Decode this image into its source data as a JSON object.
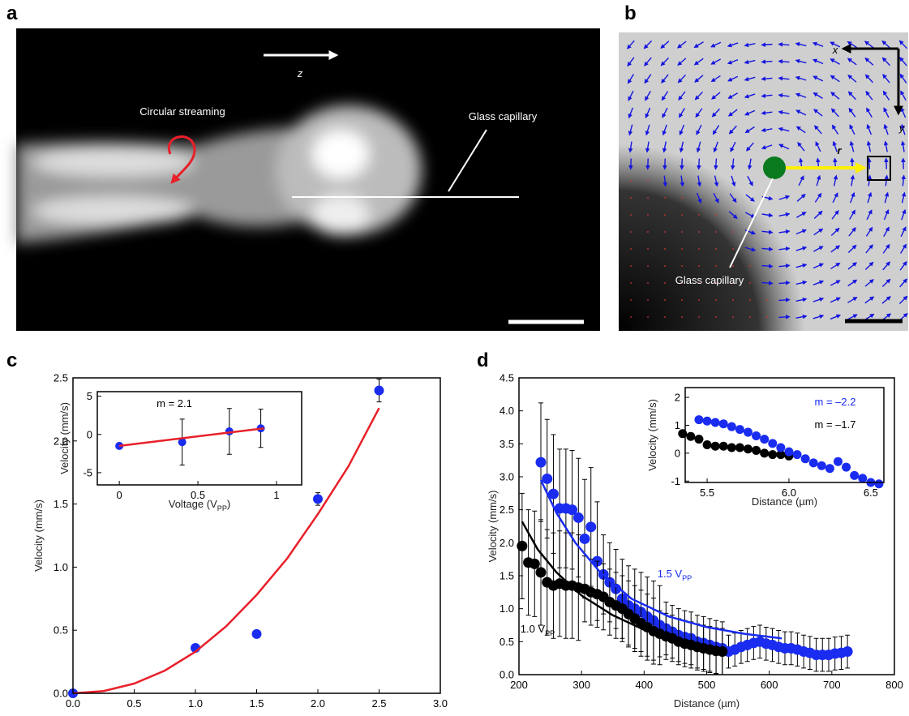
{
  "panel_a": {
    "label": "a",
    "texts": [
      "z",
      "Circular streaming",
      "Glass capillary"
    ]
  },
  "panel_b": {
    "label": "b",
    "texts": [
      "x",
      "y",
      "r",
      "Glass capillary"
    ]
  },
  "chart_data": [
    {
      "label": "c",
      "type": "scatter",
      "x_label": [
        "Voltage (V",
        "PP",
        ")"
      ],
      "y_label": "Velocity (mm/s)",
      "xlim": [
        0,
        3
      ],
      "ylim": [
        0,
        2.5
      ],
      "xticks": [
        {
          "value": 0,
          "label": "0.0"
        },
        0.5,
        {
          "value": 1,
          "label": "1.0"
        },
        1.5,
        {
          "value": 2,
          "label": "2.0"
        },
        2.5,
        {
          "value": 3,
          "label": "3.0"
        }
      ],
      "yticks": [
        {
          "value": 0,
          "label": "0.0"
        },
        0.5,
        {
          "value": 1,
          "label": "1.0"
        },
        1.5,
        {
          "value": 2,
          "label": "2.0"
        },
        2.5
      ],
      "series": [
        {
          "type": "scatter",
          "color": "#1a2cf0",
          "x": [
            0,
            1,
            1.5,
            2,
            2.5
          ],
          "values": [
            0,
            0.36,
            0.47,
            1.54,
            2.4
          ],
          "errors": [
            0.01,
            0.02,
            0.03,
            0.05,
            0.09
          ]
        },
        {
          "type": "line",
          "color": "#e8202a",
          "x": [
            0,
            0.25,
            0.5,
            0.75,
            1,
            1.25,
            1.5,
            1.75,
            2,
            2.25,
            2.5
          ],
          "values": [
            0,
            0.018,
            0.077,
            0.18,
            0.33,
            0.53,
            0.78,
            1.07,
            1.42,
            1.8,
            2.26
          ]
        }
      ]
    },
    {
      "type": "scatter",
      "x_label": [
        "Voltage (V",
        "PP",
        ")"
      ],
      "y_label": "Velocity (mm/s)",
      "xlim": [
        -0.14,
        1.16
      ],
      "ylim": [
        -6.6,
        5.6
      ],
      "xticks": [
        0,
        0.5,
        1
      ],
      "yticks": [
        -5,
        0,
        5
      ],
      "annotations": [
        {
          "text": "m = 2.1",
          "color": "#000000"
        }
      ],
      "series": [
        {
          "type": "scatter",
          "color": "#1a2cf0",
          "x": [
            0,
            0.4,
            0.7,
            0.9
          ],
          "values": [
            -1.5,
            -1.0,
            0.4,
            0.8
          ],
          "errors": [
            0.2,
            3,
            3,
            2.5
          ]
        },
        {
          "type": "line",
          "color": "#e8202a",
          "x": [
            0,
            0.92
          ],
          "values": [
            -1.5,
            0.8
          ]
        }
      ]
    },
    {
      "label": "d",
      "type": "scatter",
      "x_label": [
        "Distance (µm)"
      ],
      "y_label": "Velocity (mm/s)",
      "xlim": [
        200,
        800
      ],
      "ylim": [
        0,
        4.5
      ],
      "xticks": [
        200,
        300,
        400,
        500,
        600,
        700,
        800
      ],
      "yticks": [
        {
          "value": 0,
          "label": "0.0"
        },
        0.5,
        {
          "value": 1,
          "label": "1.0"
        },
        1.5,
        {
          "value": 2,
          "label": "2.0"
        },
        2.5,
        {
          "value": 3,
          "label": "3.0"
        },
        3.5,
        {
          "value": 4,
          "label": "4.0"
        },
        4.5
      ],
      "annotations": [
        {
          "text": [
            "1.5 V",
            "PP"
          ],
          "color": "#1a2cf0"
        },
        {
          "text": [
            "1.0 V",
            "PP"
          ],
          "color": "#000000"
        }
      ],
      "series": [
        {
          "type": "scatter",
          "color": "#1a2cf0",
          "x": [
            235,
            245,
            255,
            265,
            275,
            285,
            295,
            305,
            315,
            325,
            335,
            345,
            355,
            365,
            375,
            385,
            395,
            405,
            415,
            425,
            435,
            445,
            455,
            465,
            475,
            485,
            495,
            505,
            515,
            525,
            535,
            545,
            555,
            565,
            575,
            585,
            595,
            605,
            615,
            625,
            635,
            645,
            655,
            665,
            675,
            685,
            695,
            705,
            715,
            725
          ],
          "values": [
            3.22,
            2.97,
            2.74,
            2.52,
            2.52,
            2.5,
            2.38,
            2.06,
            2.24,
            1.72,
            1.52,
            1.4,
            1.3,
            1.15,
            1.05,
            1.0,
            0.95,
            0.88,
            0.82,
            0.75,
            0.7,
            0.65,
            0.6,
            0.57,
            0.55,
            0.5,
            0.48,
            0.45,
            0.42,
            0.4,
            0.35,
            0.38,
            0.42,
            0.45,
            0.48,
            0.5,
            0.47,
            0.45,
            0.42,
            0.4,
            0.4,
            0.38,
            0.35,
            0.33,
            0.3,
            0.3,
            0.3,
            0.32,
            0.33,
            0.35
          ],
          "errors": [
            0.9,
            0.9,
            0.9,
            0.9,
            0.9,
            0.9,
            0.9,
            0.9,
            0.9,
            0.9,
            0.6,
            0.6,
            0.6,
            0.6,
            0.6,
            0.6,
            0.6,
            0.6,
            0.6,
            0.6,
            0.4,
            0.4,
            0.4,
            0.4,
            0.4,
            0.4,
            0.4,
            0.4,
            0.4,
            0.4,
            0.25,
            0.25,
            0.25,
            0.25,
            0.25,
            0.25,
            0.25,
            0.25,
            0.25,
            0.25,
            0.25,
            0.25,
            0.25,
            0.25,
            0.25,
            0.25,
            0.25,
            0.25,
            0.25,
            0.25
          ]
        },
        {
          "type": "scatter",
          "color": "#000000",
          "x": [
            205,
            215,
            225,
            235,
            245,
            255,
            265,
            275,
            285,
            295,
            305,
            315,
            325,
            335,
            345,
            355,
            365,
            375,
            385,
            395,
            405,
            415,
            425,
            435,
            445,
            455,
            465,
            475,
            485,
            495,
            505,
            515,
            525
          ],
          "values": [
            1.95,
            1.7,
            1.68,
            1.55,
            1.4,
            1.35,
            1.38,
            1.35,
            1.35,
            1.32,
            1.3,
            1.25,
            1.22,
            1.18,
            1.1,
            1.05,
            1.0,
            0.92,
            0.85,
            0.78,
            0.72,
            0.66,
            0.62,
            0.58,
            0.55,
            0.5,
            0.47,
            0.45,
            0.42,
            0.4,
            0.38,
            0.36,
            0.35
          ],
          "errors": [
            0.8,
            0.8,
            0.8,
            0.8,
            0.8,
            0.8,
            0.8,
            0.8,
            0.8,
            0.8,
            0.5,
            0.5,
            0.5,
            0.5,
            0.5,
            0.5,
            0.5,
            0.5,
            0.5,
            0.5,
            0.5,
            0.5,
            0.35,
            0.35,
            0.35,
            0.35,
            0.35,
            0.35,
            0.35,
            0.35,
            0.35,
            0.35,
            0.35
          ]
        },
        {
          "type": "line",
          "color": "#1a2cf0",
          "x": [
            235,
            260,
            290,
            330,
            380,
            440,
            500,
            560,
            620
          ],
          "values": [
            2.95,
            2.45,
            2.0,
            1.55,
            1.15,
            0.88,
            0.72,
            0.62,
            0.55
          ]
        },
        {
          "type": "line",
          "color": "#000000",
          "x": [
            205,
            230,
            260,
            300,
            350,
            400,
            450,
            500,
            520
          ],
          "values": [
            2.32,
            1.9,
            1.55,
            1.2,
            0.9,
            0.68,
            0.52,
            0.4,
            0.36
          ]
        }
      ]
    },
    {
      "type": "scatter",
      "x_label": [
        "Distance (µm)"
      ],
      "y_label": "Velocity (mm/s)",
      "xlim": [
        5.366,
        6.58
      ],
      "ylim": [
        -1.05,
        2.35
      ],
      "xticks": [
        5.5,
        {
          "value": 6,
          "label": "6.0"
        },
        6.5
      ],
      "yticks": [
        -1,
        0,
        1,
        2
      ],
      "annotations": [
        {
          "text": "m = –2.2",
          "color": "#1a2cf0"
        },
        {
          "text": "m = –1.7",
          "color": "#000000"
        }
      ],
      "series": [
        {
          "type": "scatter",
          "color": "#000000",
          "x": [
            5.35,
            5.4,
            5.45,
            5.5,
            5.55,
            5.6,
            5.65,
            5.7,
            5.75,
            5.8,
            5.85,
            5.9,
            5.95,
            6.0
          ],
          "values": [
            0.7,
            0.6,
            0.5,
            0.3,
            0.25,
            0.25,
            0.2,
            0.2,
            0.15,
            0.1,
            0.0,
            -0.05,
            -0.05,
            -0.1
          ]
        },
        {
          "type": "scatter",
          "color": "#1a2cf0",
          "x": [
            5.45,
            5.5,
            5.55,
            5.6,
            5.65,
            5.7,
            5.75,
            5.8,
            5.85,
            5.9,
            5.95,
            6.0,
            6.05,
            6.1,
            6.15,
            6.2,
            6.25,
            6.3,
            6.35,
            6.4,
            6.45,
            6.5,
            6.55
          ],
          "values": [
            1.2,
            1.15,
            1.1,
            1.05,
            0.95,
            0.85,
            0.75,
            0.62,
            0.5,
            0.35,
            0.2,
            0.05,
            -0.05,
            -0.2,
            -0.35,
            -0.45,
            -0.55,
            -0.3,
            -0.5,
            -0.8,
            -0.9,
            -1.05,
            -1.1
          ]
        }
      ]
    }
  ]
}
